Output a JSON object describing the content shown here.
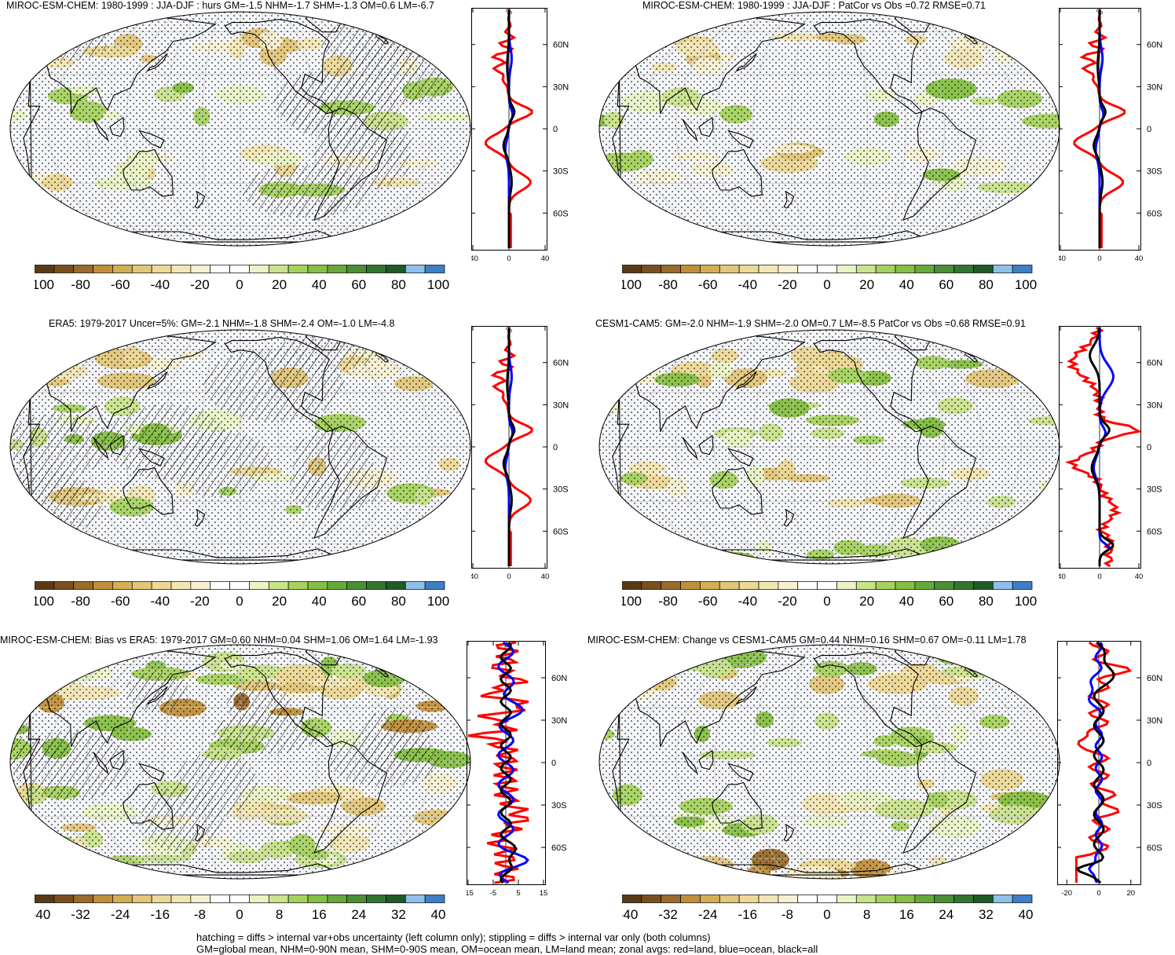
{
  "panels": [
    {
      "title": "MIROC-ESM-CHEM: 1980-1999 : JJA-DJF : hurs GM=-1.5 NHM=-1.7 SHM=-1.3 OM=0.6 LM=-6.7",
      "hatched": true,
      "zonal_xticks": [
        "-40",
        "0",
        "40"
      ],
      "zonal_xrange": [
        -40,
        40
      ],
      "cbar_labels": [
        "-100",
        "-80",
        "-60",
        "-40",
        "-20",
        "0",
        "20",
        "40",
        "60",
        "80",
        "100"
      ]
    },
    {
      "title": "MIROC-ESM-CHEM: 1980-1999 : JJA-DJF : PatCor vs Obs =0.72 RMSE=0.71",
      "hatched": false,
      "zonal_xticks": [
        "-40",
        "0",
        "40"
      ],
      "zonal_xrange": [
        -40,
        40
      ],
      "cbar_labels": [
        "-100",
        "-80",
        "-60",
        "-40",
        "-20",
        "0",
        "20",
        "40",
        "60",
        "80",
        "100"
      ]
    },
    {
      "title": "ERA5: 1979-2017 Uncer=5%: GM=-2.1 NHM=-1.8 SHM=-2.4 OM=-1.0 LM=-4.8",
      "hatched": true,
      "zonal_xticks": [
        "-40",
        "0",
        "40"
      ],
      "zonal_xrange": [
        -40,
        40
      ],
      "cbar_labels": [
        "-100",
        "-80",
        "-60",
        "-40",
        "-20",
        "0",
        "20",
        "40",
        "60",
        "80",
        "100"
      ]
    },
    {
      "title": "CESM1-CAM5: GM=-2.0 NHM=-1.9 SHM=-2.0 OM=0.7 LM=-8.5 PatCor vs Obs =0.68 RMSE=0.91",
      "hatched": false,
      "zonal_xticks": [
        "-40",
        "0",
        "40"
      ],
      "zonal_xrange": [
        -40,
        40
      ],
      "cbar_labels": [
        "-100",
        "-80",
        "-60",
        "-40",
        "-20",
        "0",
        "20",
        "40",
        "60",
        "80",
        "100"
      ]
    },
    {
      "title": "MIROC-ESM-CHEM: Bias vs ERA5: 1979-2017 GM=0.60 NHM=0.04 SHM=1.06 OM=1.64 LM=-1.93",
      "hatched": true,
      "zonal_xticks": [
        "-15",
        "-5",
        "5",
        "15"
      ],
      "zonal_xrange": [
        -15,
        15
      ],
      "cbar_labels": [
        "-40",
        "-32",
        "-24",
        "-16",
        "-8",
        "0",
        "8",
        "16",
        "24",
        "32",
        "40"
      ]
    },
    {
      "title": "MIROC-ESM-CHEM: Change vs CESM1-CAM5 GM=0.44 NHM=0.16 SHM=0.67 OM=-0.11 LM=1.78",
      "hatched": false,
      "zonal_xticks": [
        "-20",
        "0",
        "20"
      ],
      "zonal_xrange": [
        -25,
        25
      ],
      "cbar_labels": [
        "-40",
        "-32",
        "-24",
        "-16",
        "-8",
        "0",
        "8",
        "16",
        "24",
        "32",
        "40"
      ]
    }
  ],
  "zonal_unit": "%",
  "lat_ticks": [
    "60N",
    "30N",
    "0",
    "30S",
    "60S"
  ],
  "colors": {
    "land_line": "#ff0000",
    "ocean_line": "#0000ff",
    "all_line": "#000000",
    "colorbar": [
      "#5a3a16",
      "#7a4f1e",
      "#9a6a2a",
      "#c08f3c",
      "#d4ae55",
      "#e2c67a",
      "#ecd897",
      "#f2e6b5",
      "#f7f0d4",
      "#ffffff",
      "#ffffff",
      "#eaf3c8",
      "#c9e38d",
      "#a5d25f",
      "#86bf45",
      "#67a83a",
      "#4a8f35",
      "#327530",
      "#1f5a28",
      "#8ec1ea",
      "#3c7fc6"
    ]
  },
  "footer": {
    "line1": "hatching = diffs > internal var+obs uncertainty (left column only); stippling = diffs > internal var only (both columns)",
    "line2": "GM=global mean, NHM=0-90N mean, SHM=0-90S mean, OM=ocean mean, LM=land mean; zonal avgs: red=land, blue=ocean, black=all"
  }
}
